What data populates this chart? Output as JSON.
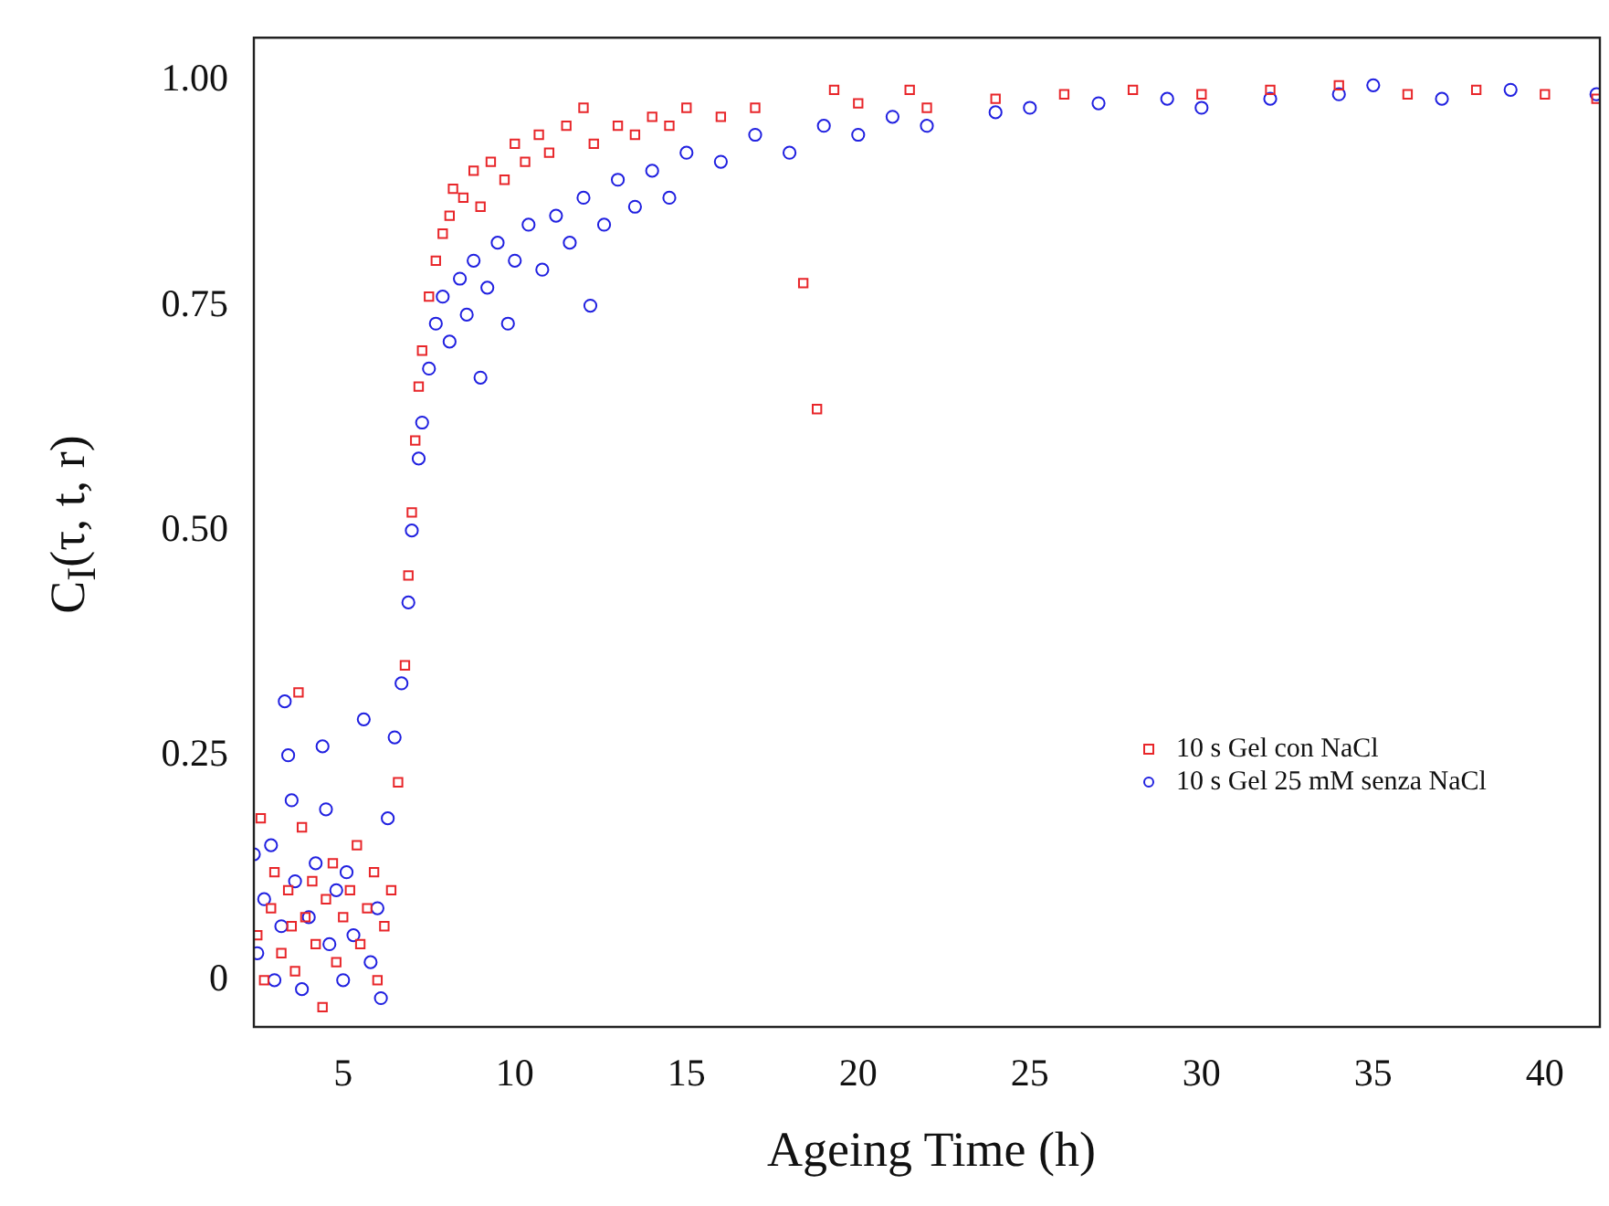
{
  "chart_data": {
    "type": "scatter",
    "xlabel": "Ageing Time (h)",
    "ylabel": "C$_{I}$(τ, t, r)",
    "xlim": [
      2.4,
      41.6
    ],
    "xticks": [
      5,
      10,
      15,
      20,
      25,
      30,
      35,
      40
    ],
    "ylim": [
      -0.052,
      1.048
    ],
    "yticks": [
      0,
      {
        "value": 0.25,
        "label": "0.25"
      },
      {
        "value": 0.5,
        "label": "0.50"
      },
      {
        "value": 0.75,
        "label": "0.75"
      },
      {
        "value": 1,
        "label": "1.00"
      }
    ],
    "grid": false,
    "legend": "bottom right",
    "series": [
      {
        "name": "10 s Gel con NaCl",
        "color": "#e8262a",
        "marker": "square",
        "x": [
          2.5,
          2.6,
          2.7,
          2.9,
          3.0,
          3.2,
          3.4,
          3.5,
          3.6,
          3.7,
          3.8,
          3.9,
          4.1,
          4.2,
          4.4,
          4.5,
          4.7,
          4.8,
          5.0,
          5.2,
          5.4,
          5.5,
          5.7,
          5.9,
          6.0,
          6.2,
          6.4,
          6.6,
          6.8,
          6.9,
          7.0,
          7.1,
          7.2,
          7.3,
          7.5,
          7.7,
          7.9,
          8.1,
          8.2,
          8.5,
          8.8,
          9.0,
          9.3,
          9.7,
          10.0,
          10.3,
          10.7,
          11.0,
          11.5,
          12.0,
          12.3,
          13.0,
          13.5,
          14.0,
          14.5,
          15.0,
          16.0,
          17.0,
          18.4,
          18.8,
          19.3,
          20,
          21.5,
          22,
          24,
          26,
          28,
          30,
          32,
          34,
          36,
          38,
          40,
          41.5
        ],
        "values": [
          0.05,
          0.18,
          0.0,
          0.08,
          0.12,
          0.03,
          0.1,
          0.06,
          0.01,
          0.32,
          0.17,
          0.07,
          0.11,
          0.04,
          -0.03,
          0.09,
          0.13,
          0.02,
          0.07,
          0.1,
          0.15,
          0.04,
          0.08,
          0.12,
          0.0,
          0.06,
          0.1,
          0.22,
          0.35,
          0.45,
          0.52,
          0.6,
          0.66,
          0.7,
          0.76,
          0.8,
          0.83,
          0.85,
          0.88,
          0.87,
          0.9,
          0.86,
          0.91,
          0.89,
          0.93,
          0.91,
          0.94,
          0.92,
          0.95,
          0.97,
          0.93,
          0.95,
          0.94,
          0.96,
          0.95,
          0.97,
          0.96,
          0.97,
          0.775,
          0.635,
          0.99,
          0.975,
          0.99,
          0.97,
          0.98,
          0.985,
          0.99,
          0.985,
          0.99,
          0.995,
          0.985,
          0.99,
          0.985,
          0.98
        ]
      },
      {
        "name": "10 s Gel 25 mM senza NaCl",
        "color": "#2020e0",
        "marker": "circle",
        "x": [
          2.4,
          2.5,
          2.7,
          2.9,
          3.0,
          3.2,
          3.3,
          3.4,
          3.5,
          3.6,
          3.8,
          4.0,
          4.2,
          4.4,
          4.5,
          4.6,
          4.8,
          5.0,
          5.1,
          5.3,
          5.6,
          5.8,
          6.0,
          6.1,
          6.3,
          6.5,
          6.7,
          6.9,
          7.0,
          7.2,
          7.3,
          7.5,
          7.7,
          7.9,
          8.1,
          8.4,
          8.6,
          8.8,
          9.0,
          9.2,
          9.5,
          9.8,
          10.0,
          10.4,
          10.8,
          11.2,
          11.6,
          12.0,
          12.2,
          12.6,
          13.0,
          13.5,
          14.0,
          14.5,
          15.0,
          16,
          17,
          18,
          19,
          20,
          21,
          22,
          24,
          25,
          27,
          29,
          30,
          32,
          34,
          35,
          37,
          39,
          41.5
        ],
        "values": [
          0.14,
          0.03,
          0.09,
          0.15,
          0.0,
          0.06,
          0.31,
          0.25,
          0.2,
          0.11,
          -0.01,
          0.07,
          0.13,
          0.26,
          0.19,
          0.04,
          0.1,
          0.0,
          0.12,
          0.05,
          0.29,
          0.02,
          0.08,
          -0.02,
          0.18,
          0.27,
          0.33,
          0.42,
          0.5,
          0.58,
          0.62,
          0.68,
          0.73,
          0.76,
          0.71,
          0.78,
          0.74,
          0.8,
          0.67,
          0.77,
          0.82,
          0.73,
          0.8,
          0.84,
          0.79,
          0.85,
          0.82,
          0.87,
          0.75,
          0.84,
          0.89,
          0.86,
          0.9,
          0.87,
          0.92,
          0.91,
          0.94,
          0.92,
          0.95,
          0.94,
          0.96,
          0.95,
          0.965,
          0.97,
          0.975,
          0.98,
          0.97,
          0.98,
          0.985,
          0.995,
          0.98,
          0.99,
          0.985
        ]
      }
    ]
  }
}
